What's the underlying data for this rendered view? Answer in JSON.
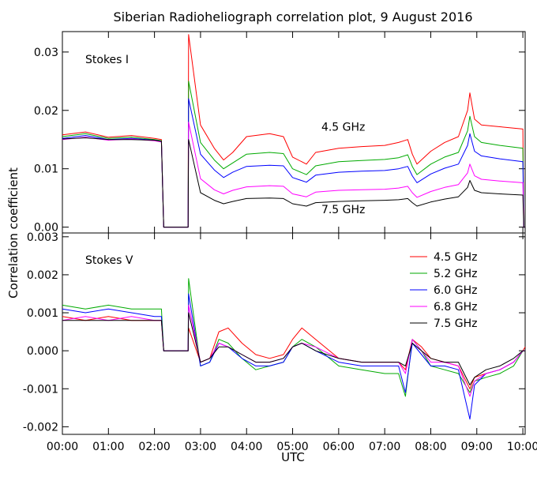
{
  "chart_data": {
    "type": "line",
    "title": "Siberian Radioheliograph correlation plot, 9 August 2016",
    "xlabel": "UTC",
    "x_ticks": [
      "00:00",
      "01:00",
      "02:00",
      "03:00",
      "04:00",
      "05:00",
      "06:00",
      "07:00",
      "08:00",
      "09:00",
      "10:00"
    ],
    "xlim": [
      0.0,
      10.05
    ],
    "legend": {
      "placement": "top-right",
      "panel": "Stokes V"
    },
    "panels": [
      {
        "label": "Stokes I",
        "ylabel": "Correlation coefficient",
        "ylim": [
          -0.001,
          0.0335
        ],
        "y_ticks": [
          "0.00",
          "0.01",
          "0.02",
          "0.03"
        ],
        "y_tick_values": [
          0.0,
          0.01,
          0.02,
          0.03
        ],
        "annotations": [
          {
            "text": "4.5 GHz",
            "x": 6.1,
            "y": 0.0165
          },
          {
            "text": "7.5 GHz",
            "x": 6.1,
            "y": 0.0024
          }
        ],
        "x": [
          0.0,
          0.5,
          1.0,
          1.5,
          2.0,
          2.15,
          2.2,
          2.73,
          2.74,
          3.0,
          3.3,
          3.5,
          3.7,
          4.0,
          4.5,
          4.8,
          5.0,
          5.3,
          5.5,
          6.0,
          6.5,
          7.0,
          7.3,
          7.5,
          7.6,
          7.7,
          8.0,
          8.3,
          8.6,
          8.8,
          8.85,
          8.95,
          9.1,
          9.5,
          10.0,
          10.02,
          10.05
        ],
        "series": [
          {
            "name": "4.5 GHz",
            "color": "#ff0000",
            "values": [
              0.0158,
              0.0163,
              0.0154,
              0.0157,
              0.0152,
              0.015,
              0.0,
              0.0,
              0.033,
              0.0175,
              0.0135,
              0.0115,
              0.0128,
              0.0155,
              0.016,
              0.0155,
              0.012,
              0.0108,
              0.0128,
              0.0135,
              0.0138,
              0.014,
              0.0145,
              0.015,
              0.0125,
              0.0108,
              0.013,
              0.0145,
              0.0155,
              0.02,
              0.023,
              0.0185,
              0.0175,
              0.0172,
              0.0168,
              0.0,
              0.0
            ]
          },
          {
            "name": "5.2 GHz",
            "color": "#00aa00",
            "values": [
              0.0155,
              0.016,
              0.0152,
              0.0154,
              0.015,
              0.0148,
              0.0,
              0.0,
              0.025,
              0.0145,
              0.0115,
              0.01,
              0.011,
              0.0125,
              0.0128,
              0.0126,
              0.01,
              0.009,
              0.0105,
              0.0112,
              0.0114,
              0.0116,
              0.0119,
              0.0124,
              0.0104,
              0.009,
              0.0108,
              0.012,
              0.0128,
              0.0165,
              0.019,
              0.0155,
              0.0145,
              0.014,
              0.0135,
              0.0,
              0.0
            ]
          },
          {
            "name": "6.0 GHz",
            "color": "#0000ff",
            "values": [
              0.0152,
              0.0157,
              0.015,
              0.0152,
              0.0149,
              0.0147,
              0.0,
              0.0,
              0.022,
              0.0125,
              0.0098,
              0.0085,
              0.0094,
              0.0104,
              0.0106,
              0.0105,
              0.0085,
              0.0077,
              0.0089,
              0.0094,
              0.0096,
              0.0097,
              0.01,
              0.0104,
              0.0088,
              0.0076,
              0.0091,
              0.0101,
              0.0108,
              0.014,
              0.016,
              0.013,
              0.0122,
              0.0117,
              0.0112,
              0.0,
              0.0
            ]
          },
          {
            "name": "6.8 GHz",
            "color": "#ff00ff",
            "values": [
              0.015,
              0.0154,
              0.0149,
              0.0151,
              0.0148,
              0.0146,
              0.0,
              0.0,
              0.018,
              0.0083,
              0.0064,
              0.0057,
              0.0063,
              0.0069,
              0.0071,
              0.007,
              0.0057,
              0.0052,
              0.006,
              0.0063,
              0.0064,
              0.0065,
              0.0067,
              0.007,
              0.0059,
              0.0051,
              0.0061,
              0.0068,
              0.0073,
              0.0093,
              0.0108,
              0.0088,
              0.0082,
              0.0079,
              0.0076,
              0.0,
              0.0
            ]
          },
          {
            "name": "7.5 GHz",
            "color": "#000000",
            "values": [
              0.0151,
              0.0153,
              0.015,
              0.015,
              0.0149,
              0.0147,
              0.0,
              0.0,
              0.015,
              0.0059,
              0.0046,
              0.004,
              0.0044,
              0.0049,
              0.005,
              0.0049,
              0.004,
              0.0036,
              0.0042,
              0.0044,
              0.0045,
              0.0046,
              0.0047,
              0.0049,
              0.0042,
              0.0036,
              0.0043,
              0.0048,
              0.0052,
              0.0068,
              0.008,
              0.0063,
              0.0059,
              0.0057,
              0.0055,
              0.0,
              0.0
            ]
          }
        ]
      },
      {
        "label": "Stokes V",
        "ylabel": "",
        "ylim": [
          -0.0022,
          0.0031
        ],
        "y_ticks": [
          "-0.002",
          "-0.001",
          "0.000",
          "0.001",
          "0.002",
          "0.003"
        ],
        "y_tick_values": [
          -0.002,
          -0.001,
          0.0,
          0.001,
          0.002,
          0.003
        ],
        "x": [
          0.0,
          0.5,
          1.0,
          1.5,
          2.0,
          2.15,
          2.2,
          2.73,
          2.74,
          3.0,
          3.2,
          3.4,
          3.6,
          3.9,
          4.2,
          4.5,
          4.8,
          5.0,
          5.2,
          5.5,
          6.0,
          6.5,
          7.0,
          7.3,
          7.45,
          7.6,
          7.8,
          8.0,
          8.3,
          8.6,
          8.85,
          8.95,
          9.2,
          9.5,
          9.8,
          10.0,
          10.05
        ],
        "series": [
          {
            "name": "4.5 GHz",
            "color": "#ff0000",
            "values": [
              0.0009,
              0.0008,
              0.0009,
              0.0008,
              0.0008,
              0.0008,
              0.0,
              0.0,
              0.0006,
              -0.0003,
              -0.0002,
              0.0005,
              0.0006,
              0.0002,
              -0.0001,
              -0.0002,
              -0.0001,
              0.0003,
              0.0006,
              0.0003,
              -0.0002,
              -0.0003,
              -0.0003,
              -0.0003,
              -0.0005,
              0.0003,
              0.0001,
              -0.0002,
              -0.0003,
              -0.0004,
              -0.001,
              -0.0007,
              -0.0006,
              -0.0005,
              -0.0003,
              0.0,
              0.0001
            ]
          },
          {
            "name": "5.2 GHz",
            "color": "#00aa00",
            "values": [
              0.0012,
              0.0011,
              0.0012,
              0.0011,
              0.0011,
              0.0011,
              0.0,
              0.0,
              0.0019,
              -0.0004,
              -0.0003,
              0.0003,
              0.0002,
              -0.0002,
              -0.0005,
              -0.0004,
              -0.0003,
              0.0001,
              0.0003,
              0.0001,
              -0.0004,
              -0.0005,
              -0.0006,
              -0.0006,
              -0.0012,
              0.0003,
              0.0,
              -0.0004,
              -0.0005,
              -0.0006,
              -0.0011,
              -0.0008,
              -0.0007,
              -0.0006,
              -0.0004,
              0.0,
              0.0
            ]
          },
          {
            "name": "6.0 GHz",
            "color": "#0000ff",
            "values": [
              0.0011,
              0.001,
              0.0011,
              0.001,
              0.0009,
              0.0009,
              0.0,
              0.0,
              0.0015,
              -0.0004,
              -0.0003,
              0.0002,
              0.0001,
              -0.0002,
              -0.0004,
              -0.0004,
              -0.0003,
              0.0001,
              0.0002,
              0.0,
              -0.0003,
              -0.0004,
              -0.0004,
              -0.0004,
              -0.0011,
              0.0002,
              -0.0001,
              -0.0004,
              -0.0004,
              -0.0005,
              -0.0018,
              -0.0009,
              -0.0006,
              -0.0005,
              -0.0003,
              0.0,
              0.0
            ]
          },
          {
            "name": "6.8 GHz",
            "color": "#ff00ff",
            "values": [
              0.0008,
              0.0009,
              0.0008,
              0.0009,
              0.0008,
              0.0008,
              0.0,
              0.0,
              0.0012,
              -0.0003,
              -0.0002,
              0.0002,
              0.0001,
              -0.0001,
              -0.0003,
              -0.0003,
              -0.0002,
              0.0001,
              0.0002,
              0.0001,
              -0.0002,
              -0.0003,
              -0.0003,
              -0.0003,
              -0.0006,
              0.0003,
              0.0,
              -0.0003,
              -0.0003,
              -0.0004,
              -0.0012,
              -0.0008,
              -0.0006,
              -0.0005,
              -0.0003,
              0.0,
              0.0
            ]
          },
          {
            "name": "7.5 GHz",
            "color": "#000000",
            "values": [
              0.0008,
              0.0008,
              0.0008,
              0.0008,
              0.0008,
              0.0008,
              0.0,
              0.0,
              0.001,
              -0.0003,
              -0.0002,
              0.0001,
              0.0001,
              -0.0001,
              -0.0003,
              -0.0003,
              -0.0002,
              0.0001,
              0.0002,
              0.0,
              -0.0002,
              -0.0003,
              -0.0003,
              -0.0003,
              -0.0004,
              0.0002,
              0.0,
              -0.0002,
              -0.0003,
              -0.0003,
              -0.0009,
              -0.0007,
              -0.0005,
              -0.0004,
              -0.0002,
              0.0,
              0.0
            ]
          }
        ]
      }
    ]
  }
}
